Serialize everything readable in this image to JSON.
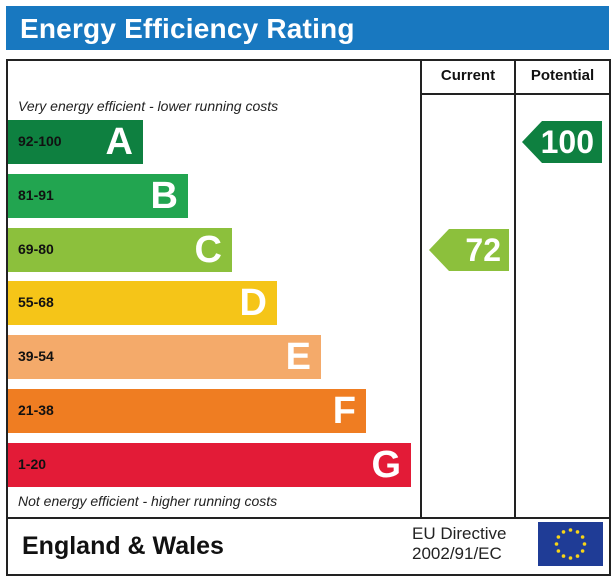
{
  "title": "Energy Efficiency Rating",
  "columns": {
    "current": "Current",
    "potential": "Potential"
  },
  "notes": {
    "top": "Very energy efficient - lower running costs",
    "bottom": "Not energy efficient - higher running costs"
  },
  "footer": {
    "region": "England & Wales",
    "directive_line1": "EU Directive",
    "directive_line2": "2002/91/EC",
    "flag_icon": "eu-flag-icon"
  },
  "chart_data": {
    "type": "bar",
    "title": "Energy Efficiency Rating",
    "categories": [
      "A",
      "B",
      "C",
      "D",
      "E",
      "F",
      "G"
    ],
    "ranges": [
      "92-100",
      "81-91",
      "69-80",
      "55-68",
      "39-54",
      "21-38",
      "1-20"
    ],
    "colors": [
      "#0e8040",
      "#22a550",
      "#8cc03c",
      "#f5c518",
      "#f4aa6a",
      "#ef7d22",
      "#e31b37"
    ],
    "current": {
      "value": 72,
      "band": "C",
      "color": "#8cc03c"
    },
    "potential": {
      "value": 100,
      "band": "A",
      "color": "#0e8040"
    }
  }
}
